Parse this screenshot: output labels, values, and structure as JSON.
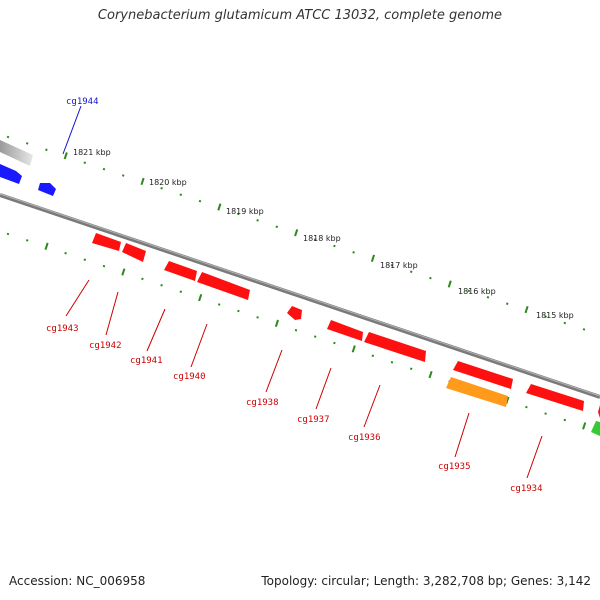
{
  "title": "Corynebacterium glutamicum ATCC 13032, complete genome",
  "accession": "Accession: NC_006958",
  "summary": "Topology: circular; Length: 3,282,708 bp; Genes: 3,142",
  "colors": {
    "background": "#ffffff",
    "forward_gene": "#1a1aff",
    "reverse_gene": "#ff1010",
    "highlight_gene": "#ff9a1a",
    "other_gene": "#33cc33",
    "backbone": "#808080",
    "ticks": "#2a8a1a",
    "forward_label": "#1414cc",
    "reverse_label": "#cc0000"
  },
  "scale_labels": [
    "1821 kbp",
    "1820 kbp",
    "1819 kbp",
    "1818 kbp",
    "1817 kbp",
    "1816 kbp",
    "1815 kbp"
  ],
  "gene_labels": {
    "cg1944": "cg1944",
    "cg1943": "cg1943",
    "cg1942": "cg1942",
    "cg1941": "cg1941",
    "cg1940": "cg1940",
    "cg1938": "cg1938",
    "cg1937": "cg1937",
    "cg1936": "cg1936",
    "cg1935": "cg1935",
    "cg1934": "cg1934"
  }
}
